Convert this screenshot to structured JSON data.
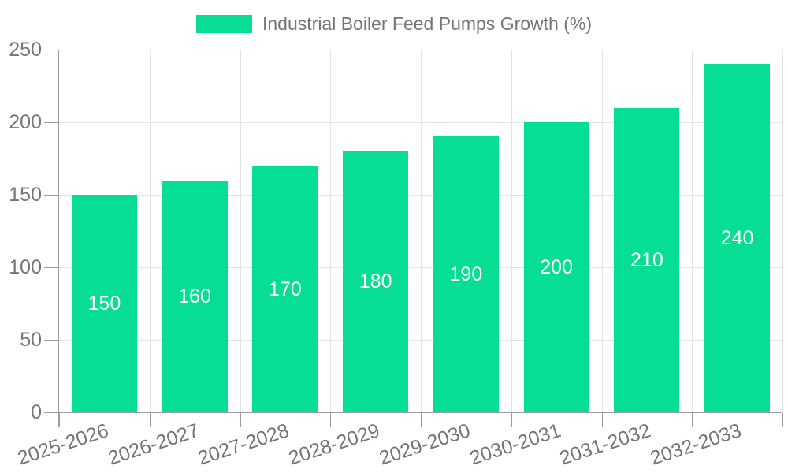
{
  "legend": {
    "items": [
      {
        "label": "Industrial Boiler Feed Pumps Growth (%)",
        "color": "#06DE94"
      }
    ]
  },
  "chart_data": {
    "type": "bar",
    "title": "Industrial Boiler Feed Pumps Growth (%)",
    "categories": [
      "2025-2026",
      "2026-2027",
      "2027-2028",
      "2028-2029",
      "2029-2030",
      "2030-2031",
      "2031-2032",
      "2032-2033"
    ],
    "series": [
      {
        "name": "Industrial Boiler Feed Pumps Growth (%)",
        "values": [
          150,
          160,
          170,
          180,
          190,
          200,
          210,
          240
        ],
        "color": "#06DE94"
      }
    ],
    "xlabel": "",
    "ylabel": "",
    "ylim": [
      0,
      250
    ],
    "yticks": [
      0,
      50,
      100,
      150,
      200,
      250
    ],
    "grid": true,
    "legend_position": "top",
    "value_labels": "inside-center",
    "value_label_color": "#ffffff",
    "axis_text_color": "#757575",
    "grid_color": "#e3e3e3",
    "axis_line_color": "#9c9c9c",
    "background": "#ffffff"
  }
}
